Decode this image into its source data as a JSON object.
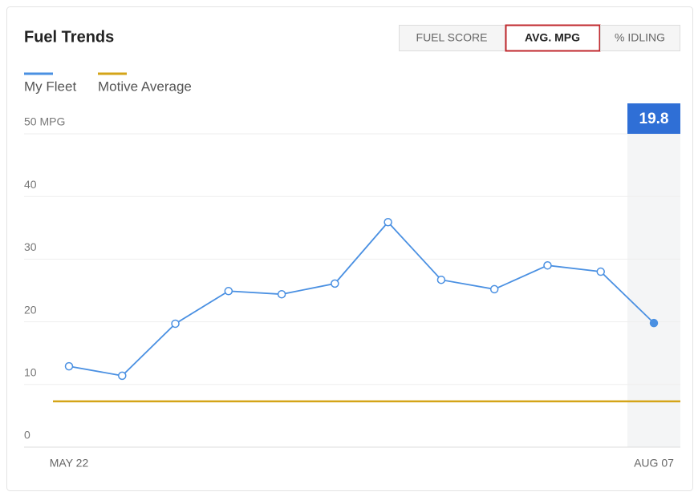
{
  "tabs": [
    "FUEL SCORE",
    "AVG. MPG",
    "% IDLING"
  ],
  "active_tab": 1,
  "chart_data": {
    "type": "line",
    "title": "Fuel Trends",
    "categories": [
      "MAY 22",
      null,
      null,
      null,
      null,
      null,
      null,
      null,
      null,
      null,
      null,
      "AUG 07"
    ],
    "series": [
      {
        "name": "My Fleet",
        "color": "#4a90e2",
        "values": [
          12.9,
          11.4,
          19.7,
          24.9,
          24.4,
          26.1,
          35.9,
          26.7,
          25.2,
          29.0,
          28.0,
          19.8
        ]
      },
      {
        "name": "Motive Average",
        "color": "#d4a418",
        "values": [
          7.3,
          7.3,
          7.3,
          7.3,
          7.3,
          7.3,
          7.3,
          7.3,
          7.3,
          7.3,
          7.3,
          7.3
        ]
      }
    ],
    "ylim": [
      0,
      50
    ],
    "yticks": [
      0,
      10,
      20,
      30,
      40,
      {
        "value": 50,
        "label": "50 MPG"
      }
    ],
    "grid": true,
    "highlight_index": 11
  }
}
